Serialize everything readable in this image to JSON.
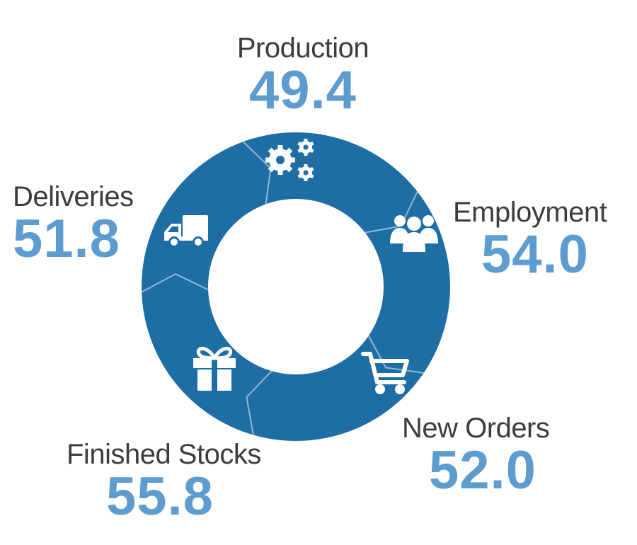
{
  "colors": {
    "ring": "#1e6ea5",
    "value": "#5d9ccf",
    "label": "#3d3d3d",
    "icon": "#ffffff",
    "divider": "#8fb8d8"
  },
  "metrics": [
    {
      "key": "production",
      "label": "Production",
      "value": "49.4",
      "icon": "gears-icon"
    },
    {
      "key": "employment",
      "label": "Employment",
      "value": "54.0",
      "icon": "people-group-icon"
    },
    {
      "key": "neworders",
      "label": "New Orders",
      "value": "52.0",
      "icon": "shopping-cart-icon"
    },
    {
      "key": "finished",
      "label": "Finished Stocks",
      "value": "55.8",
      "icon": "gift-box-icon"
    },
    {
      "key": "deliveries",
      "label": "Deliveries",
      "value": "51.8",
      "icon": "delivery-truck-icon"
    }
  ]
}
